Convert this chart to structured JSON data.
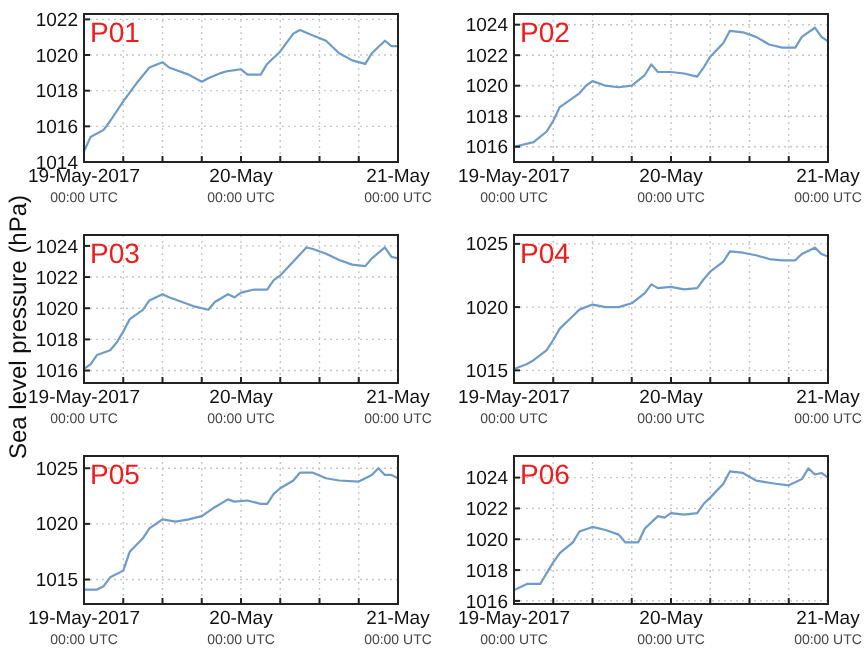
{
  "chart_data": [
    {
      "type": "line",
      "title": "P01",
      "x": [
        "2017-05-19T00:00",
        "2017-05-19T01:00",
        "2017-05-19T03:00",
        "2017-05-19T04:00",
        "2017-05-19T06:00",
        "2017-05-19T08:00",
        "2017-05-19T10:00",
        "2017-05-19T12:00",
        "2017-05-19T13:00",
        "2017-05-19T16:00",
        "2017-05-19T18:00",
        "2017-05-19T19:00",
        "2017-05-19T21:00",
        "2017-05-19T22:00",
        "2017-05-20T00:00",
        "2017-05-20T01:00",
        "2017-05-20T03:00",
        "2017-05-20T04:00",
        "2017-05-20T06:00",
        "2017-05-20T08:00",
        "2017-05-20T09:00",
        "2017-05-20T11:00",
        "2017-05-20T13:00",
        "2017-05-20T15:00",
        "2017-05-20T17:00",
        "2017-05-20T19:00",
        "2017-05-20T20:00",
        "2017-05-20T22:00",
        "2017-05-20T23:00",
        "2017-05-21T00:00"
      ],
      "series": [
        {
          "color": "#6f9bc8",
          "values": [
            1014.6,
            1015.4,
            1015.8,
            1016.3,
            1017.4,
            1018.4,
            1019.3,
            1019.6,
            1019.3,
            1018.9,
            1018.5,
            1018.7,
            1019.0,
            1019.1,
            1019.2,
            1018.9,
            1018.9,
            1019.5,
            1020.2,
            1021.2,
            1021.4,
            1021.1,
            1020.8,
            1020.1,
            1019.7,
            1019.5,
            1020.1,
            1020.8,
            1020.5,
            1020.5
          ]
        }
      ],
      "xlim": [
        "2017-05-19T00:00",
        "2017-05-21T00:00"
      ],
      "xticks": [
        {
          "value": "2017-05-19T00:00",
          "label": "19-May-2017\n00:00 UTC"
        },
        {
          "value": "2017-05-19T06:00",
          "label": null
        },
        {
          "value": "2017-05-19T12:00",
          "label": null
        },
        {
          "value": "2017-05-19T18:00",
          "label": null
        },
        {
          "value": "2017-05-20T00:00",
          "label": "20-May\n00:00 UTC"
        },
        {
          "value": "2017-05-20T06:00",
          "label": null
        },
        {
          "value": "2017-05-20T12:00",
          "label": null
        },
        {
          "value": "2017-05-20T18:00",
          "label": null
        },
        {
          "value": "2017-05-21T00:00",
          "label": "21-May\n00:00 UTC"
        }
      ],
      "ylim": [
        1014,
        1022.3
      ],
      "yticks": [
        1014,
        1016,
        1018,
        1020,
        1022
      ],
      "grid": true,
      "marker": "none",
      "line_style": "solid"
    },
    {
      "type": "line",
      "title": "P02",
      "x": [
        "2017-05-19T00:00",
        "2017-05-19T01:00",
        "2017-05-19T03:00",
        "2017-05-19T05:00",
        "2017-05-19T06:00",
        "2017-05-19T07:00",
        "2017-05-19T10:00",
        "2017-05-19T11:00",
        "2017-05-19T12:00",
        "2017-05-19T14:00",
        "2017-05-19T16:00",
        "2017-05-19T18:00",
        "2017-05-19T20:00",
        "2017-05-19T21:00",
        "2017-05-19T22:00",
        "2017-05-20T00:00",
        "2017-05-20T02:00",
        "2017-05-20T04:00",
        "2017-05-20T05:00",
        "2017-05-20T06:00",
        "2017-05-20T08:00",
        "2017-05-20T09:00",
        "2017-05-20T11:00",
        "2017-05-20T13:00",
        "2017-05-20T15:00",
        "2017-05-20T17:00",
        "2017-05-20T19:00",
        "2017-05-20T20:00",
        "2017-05-20T22:00",
        "2017-05-20T23:00",
        "2017-05-21T00:00"
      ],
      "series": [
        {
          "color": "#6f9bc8",
          "values": [
            1016.0,
            1016.1,
            1016.3,
            1017.0,
            1017.7,
            1018.6,
            1019.5,
            1020.0,
            1020.3,
            1020.0,
            1019.9,
            1020.0,
            1020.7,
            1021.4,
            1020.9,
            1020.9,
            1020.8,
            1020.6,
            1021.2,
            1021.9,
            1022.8,
            1023.6,
            1023.5,
            1023.2,
            1022.7,
            1022.5,
            1022.5,
            1023.2,
            1023.8,
            1023.2,
            1022.9
          ]
        }
      ],
      "xlim": [
        "2017-05-19T00:00",
        "2017-05-21T00:00"
      ],
      "xticks": [
        {
          "value": "2017-05-19T00:00",
          "label": "19-May-2017\n00:00 UTC"
        },
        {
          "value": "2017-05-19T06:00",
          "label": null
        },
        {
          "value": "2017-05-19T12:00",
          "label": null
        },
        {
          "value": "2017-05-19T18:00",
          "label": null
        },
        {
          "value": "2017-05-20T00:00",
          "label": "20-May\n00:00 UTC"
        },
        {
          "value": "2017-05-20T06:00",
          "label": null
        },
        {
          "value": "2017-05-20T12:00",
          "label": null
        },
        {
          "value": "2017-05-20T18:00",
          "label": null
        },
        {
          "value": "2017-05-21T00:00",
          "label": "21-May\n00:00 UTC"
        }
      ],
      "ylim": [
        1015,
        1024.7
      ],
      "yticks": [
        1016,
        1018,
        1020,
        1022,
        1024
      ],
      "grid": true,
      "marker": "none",
      "line_style": "solid"
    },
    {
      "type": "line",
      "title": "P03",
      "ylabel": "Sea level pressure (hPa)",
      "x": [
        "2017-05-19T00:00",
        "2017-05-19T01:00",
        "2017-05-19T02:00",
        "2017-05-19T04:00",
        "2017-05-19T05:00",
        "2017-05-19T06:00",
        "2017-05-19T07:00",
        "2017-05-19T09:00",
        "2017-05-19T10:00",
        "2017-05-19T12:00",
        "2017-05-19T13:00",
        "2017-05-19T15:00",
        "2017-05-19T17:00",
        "2017-05-19T19:00",
        "2017-05-19T20:00",
        "2017-05-19T22:00",
        "2017-05-19T23:00",
        "2017-05-20T00:00",
        "2017-05-20T02:00",
        "2017-05-20T04:00",
        "2017-05-20T05:00",
        "2017-05-20T06:00",
        "2017-05-20T08:00",
        "2017-05-20T10:00",
        "2017-05-20T11:00",
        "2017-05-20T13:00",
        "2017-05-20T15:00",
        "2017-05-20T17:00",
        "2017-05-20T19:00",
        "2017-05-20T20:00",
        "2017-05-20T22:00",
        "2017-05-20T23:00",
        "2017-05-21T00:00"
      ],
      "series": [
        {
          "color": "#6f9bc8",
          "values": [
            1016.1,
            1016.4,
            1017.0,
            1017.3,
            1017.8,
            1018.5,
            1019.3,
            1019.9,
            1020.5,
            1020.9,
            1020.7,
            1020.4,
            1020.1,
            1019.9,
            1020.4,
            1020.9,
            1020.7,
            1021.0,
            1021.2,
            1021.2,
            1021.8,
            1022.1,
            1023.0,
            1023.9,
            1023.8,
            1023.5,
            1023.1,
            1022.8,
            1022.7,
            1023.2,
            1023.9,
            1023.3,
            1023.2
          ]
        }
      ],
      "xlim": [
        "2017-05-19T00:00",
        "2017-05-21T00:00"
      ],
      "xticks": [
        {
          "value": "2017-05-19T00:00",
          "label": "19-May-2017\n00:00 UTC"
        },
        {
          "value": "2017-05-19T06:00",
          "label": null
        },
        {
          "value": "2017-05-19T12:00",
          "label": null
        },
        {
          "value": "2017-05-19T18:00",
          "label": null
        },
        {
          "value": "2017-05-20T00:00",
          "label": "20-May\n00:00 UTC"
        },
        {
          "value": "2017-05-20T06:00",
          "label": null
        },
        {
          "value": "2017-05-20T12:00",
          "label": null
        },
        {
          "value": "2017-05-20T18:00",
          "label": null
        },
        {
          "value": "2017-05-21T00:00",
          "label": "21-May\n00:00 UTC"
        }
      ],
      "ylim": [
        1015.2,
        1024.7
      ],
      "yticks": [
        1016,
        1018,
        1020,
        1022,
        1024
      ],
      "grid": true,
      "marker": "none",
      "line_style": "solid"
    },
    {
      "type": "line",
      "title": "P04",
      "x": [
        "2017-05-19T00:00",
        "2017-05-19T02:00",
        "2017-05-19T03:00",
        "2017-05-19T05:00",
        "2017-05-19T06:00",
        "2017-05-19T07:00",
        "2017-05-19T09:00",
        "2017-05-19T10:00",
        "2017-05-19T12:00",
        "2017-05-19T14:00",
        "2017-05-19T16:00",
        "2017-05-19T18:00",
        "2017-05-19T20:00",
        "2017-05-19T21:00",
        "2017-05-19T22:00",
        "2017-05-20T00:00",
        "2017-05-20T02:00",
        "2017-05-20T04:00",
        "2017-05-20T05:00",
        "2017-05-20T06:00",
        "2017-05-20T08:00",
        "2017-05-20T09:00",
        "2017-05-20T11:00",
        "2017-05-20T13:00",
        "2017-05-20T15:00",
        "2017-05-20T17:00",
        "2017-05-20T19:00",
        "2017-05-20T20:00",
        "2017-05-20T22:00",
        "2017-05-20T23:00",
        "2017-05-21T00:00"
      ],
      "series": [
        {
          "color": "#6f9bc8",
          "values": [
            1015.1,
            1015.5,
            1015.8,
            1016.6,
            1017.4,
            1018.3,
            1019.3,
            1019.8,
            1020.2,
            1020.0,
            1020.0,
            1020.3,
            1021.1,
            1021.8,
            1021.5,
            1021.6,
            1021.4,
            1021.5,
            1022.2,
            1022.8,
            1023.6,
            1024.4,
            1024.3,
            1024.1,
            1023.8,
            1023.7,
            1023.7,
            1024.2,
            1024.7,
            1024.2,
            1024.0
          ]
        }
      ],
      "xlim": [
        "2017-05-19T00:00",
        "2017-05-21T00:00"
      ],
      "xticks": [
        {
          "value": "2017-05-19T00:00",
          "label": "19-May-2017\n00:00 UTC"
        },
        {
          "value": "2017-05-19T06:00",
          "label": null
        },
        {
          "value": "2017-05-19T12:00",
          "label": null
        },
        {
          "value": "2017-05-19T18:00",
          "label": null
        },
        {
          "value": "2017-05-20T00:00",
          "label": "20-May\n00:00 UTC"
        },
        {
          "value": "2017-05-20T06:00",
          "label": null
        },
        {
          "value": "2017-05-20T12:00",
          "label": null
        },
        {
          "value": "2017-05-20T18:00",
          "label": null
        },
        {
          "value": "2017-05-21T00:00",
          "label": "21-May\n00:00 UTC"
        }
      ],
      "ylim": [
        1014,
        1025.7
      ],
      "yticks": [
        1015,
        1020,
        1025
      ],
      "grid": true,
      "marker": "none",
      "line_style": "solid"
    },
    {
      "type": "line",
      "title": "P05",
      "x": [
        "2017-05-19T00:00",
        "2017-05-19T02:00",
        "2017-05-19T03:00",
        "2017-05-19T04:00",
        "2017-05-19T06:00",
        "2017-05-19T07:00",
        "2017-05-19T09:00",
        "2017-05-19T10:00",
        "2017-05-19T12:00",
        "2017-05-19T14:00",
        "2017-05-19T16:00",
        "2017-05-19T18:00",
        "2017-05-19T20:00",
        "2017-05-19T22:00",
        "2017-05-19T23:00",
        "2017-05-20T01:00",
        "2017-05-20T03:00",
        "2017-05-20T04:00",
        "2017-05-20T05:00",
        "2017-05-20T06:00",
        "2017-05-20T08:00",
        "2017-05-20T09:00",
        "2017-05-20T11:00",
        "2017-05-20T13:00",
        "2017-05-20T15:00",
        "2017-05-20T18:00",
        "2017-05-20T20:00",
        "2017-05-20T21:00",
        "2017-05-20T22:00",
        "2017-05-20T23:00",
        "2017-05-21T00:00"
      ],
      "series": [
        {
          "color": "#6f9bc8",
          "values": [
            1014.1,
            1014.1,
            1014.4,
            1015.2,
            1015.8,
            1017.5,
            1018.7,
            1019.6,
            1020.4,
            1020.2,
            1020.4,
            1020.7,
            1021.5,
            1022.2,
            1022.0,
            1022.1,
            1021.8,
            1021.8,
            1022.7,
            1023.2,
            1023.9,
            1024.6,
            1024.6,
            1024.1,
            1023.9,
            1023.8,
            1024.4,
            1025.0,
            1024.4,
            1024.4,
            1024.1
          ]
        }
      ],
      "xlim": [
        "2017-05-19T00:00",
        "2017-05-21T00:00"
      ],
      "xticks": [
        {
          "value": "2017-05-19T00:00",
          "label": "19-May-2017\n00:00 UTC"
        },
        {
          "value": "2017-05-19T06:00",
          "label": null
        },
        {
          "value": "2017-05-19T12:00",
          "label": null
        },
        {
          "value": "2017-05-19T18:00",
          "label": null
        },
        {
          "value": "2017-05-20T00:00",
          "label": "20-May\n00:00 UTC"
        },
        {
          "value": "2017-05-20T06:00",
          "label": null
        },
        {
          "value": "2017-05-20T12:00",
          "label": null
        },
        {
          "value": "2017-05-20T18:00",
          "label": null
        },
        {
          "value": "2017-05-21T00:00",
          "label": "21-May\n00:00 UTC"
        }
      ],
      "ylim": [
        1012.8,
        1026.1
      ],
      "yticks": [
        1015,
        1020,
        1025
      ],
      "grid": true,
      "marker": "none",
      "line_style": "solid"
    },
    {
      "type": "line",
      "title": "P06",
      "x": [
        "2017-05-19T00:00",
        "2017-05-19T01:00",
        "2017-05-19T02:00",
        "2017-05-19T04:00",
        "2017-05-19T05:00",
        "2017-05-19T06:00",
        "2017-05-19T07:00",
        "2017-05-19T09:00",
        "2017-05-19T10:00",
        "2017-05-19T12:00",
        "2017-05-19T14:00",
        "2017-05-19T16:00",
        "2017-05-19T17:00",
        "2017-05-19T19:00",
        "2017-05-19T20:00",
        "2017-05-19T22:00",
        "2017-05-19T23:00",
        "2017-05-20T00:00",
        "2017-05-20T02:00",
        "2017-05-20T04:00",
        "2017-05-20T05:00",
        "2017-05-20T06:00",
        "2017-05-20T08:00",
        "2017-05-20T09:00",
        "2017-05-20T11:00",
        "2017-05-20T13:00",
        "2017-05-20T16:00",
        "2017-05-20T18:00",
        "2017-05-20T20:00",
        "2017-05-20T21:00",
        "2017-05-20T22:00",
        "2017-05-20T23:00",
        "2017-05-21T00:00"
      ],
      "series": [
        {
          "color": "#6f9bc8",
          "values": [
            1016.7,
            1016.9,
            1017.1,
            1017.1,
            1017.8,
            1018.5,
            1019.1,
            1019.8,
            1020.5,
            1020.8,
            1020.6,
            1020.3,
            1019.8,
            1019.8,
            1020.7,
            1021.5,
            1021.4,
            1021.7,
            1021.6,
            1021.7,
            1022.3,
            1022.7,
            1023.6,
            1024.4,
            1024.3,
            1023.8,
            1023.6,
            1023.5,
            1023.9,
            1024.6,
            1024.2,
            1024.3,
            1024.0
          ]
        }
      ],
      "xlim": [
        "2017-05-19T00:00",
        "2017-05-21T00:00"
      ],
      "xticks": [
        {
          "value": "2017-05-19T00:00",
          "label": "19-May-2017\n00:00 UTC"
        },
        {
          "value": "2017-05-19T06:00",
          "label": null
        },
        {
          "value": "2017-05-19T12:00",
          "label": null
        },
        {
          "value": "2017-05-19T18:00",
          "label": null
        },
        {
          "value": "2017-05-20T00:00",
          "label": "20-May\n00:00 UTC"
        },
        {
          "value": "2017-05-20T06:00",
          "label": null
        },
        {
          "value": "2017-05-20T12:00",
          "label": null
        },
        {
          "value": "2017-05-20T18:00",
          "label": null
        },
        {
          "value": "2017-05-21T00:00",
          "label": "21-May\n00:00 UTC"
        }
      ],
      "ylim": [
        1015.8,
        1025.4
      ],
      "yticks": [
        1016,
        1018,
        1020,
        1022,
        1024
      ],
      "grid": true,
      "marker": "none",
      "line_style": "solid"
    }
  ]
}
